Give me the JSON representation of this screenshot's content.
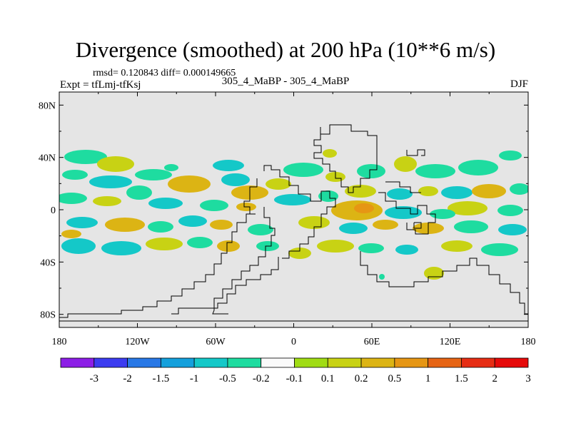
{
  "header": {
    "title": "Divergence (smoothed) at 200 hPa (10**6 m/s)",
    "stats": "rmsd= 0.120843 diff= 0.000149665",
    "left_label": "Expt = tfLmj-tfKsj",
    "center_label": "305_4_MaBP - 305_4_MaBP",
    "season": "DJF"
  },
  "colors": {
    "background": "#e5e5e5",
    "coast": "#000000"
  },
  "chart_data": {
    "type": "heatmap",
    "title": "Divergence (smoothed) at 200 hPa (10**6 m/s)",
    "x_ticks": [
      "180",
      "120W",
      "60W",
      "0",
      "60E",
      "120E",
      "180"
    ],
    "x_tick_values": [
      -180,
      -120,
      -60,
      0,
      60,
      120,
      180
    ],
    "y_ticks": [
      "80N",
      "40N",
      "0",
      "40S",
      "80S"
    ],
    "y_tick_values": [
      80,
      40,
      0,
      -40,
      -80
    ],
    "xlim": [
      -180,
      180
    ],
    "ylim": [
      -90,
      90
    ],
    "colorbar": {
      "labels": [
        "-3",
        "-2",
        "-1.5",
        "-1",
        "-0.5",
        "-0.2",
        "-0.1",
        "0.1",
        "0.2",
        "0.5",
        "1",
        "1.5",
        "2",
        "3"
      ],
      "colors": [
        "#8c1ee6",
        "#3c3cf0",
        "#2878e6",
        "#14a0dc",
        "#14c8c8",
        "#1edca0",
        "#fafafa",
        "#a0dc14",
        "#c8d214",
        "#dcb414",
        "#e69614",
        "#e66414",
        "#e62d14",
        "#e60a0a"
      ]
    }
  }
}
